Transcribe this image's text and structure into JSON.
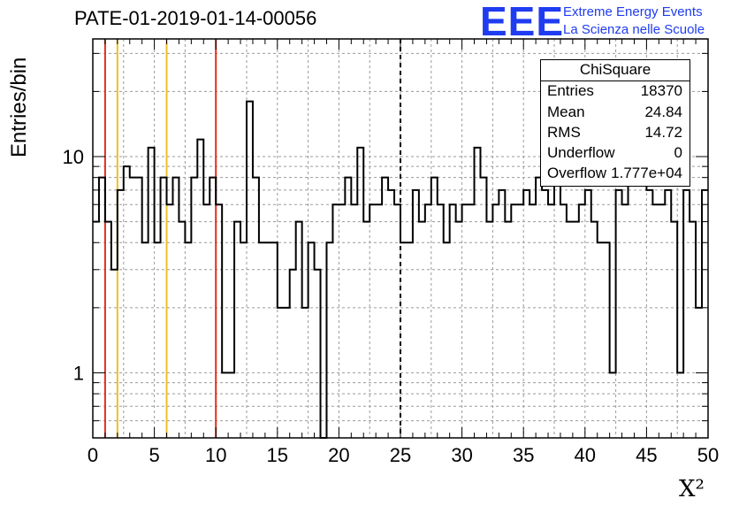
{
  "title": "PATE-01-2019-01-14-00056",
  "logo": {
    "mark": "EEE",
    "line1": "Extreme Energy Events",
    "line2": "La Scienza nelle Scuole",
    "color": "#1f3cf0"
  },
  "stats": {
    "title": "ChiSquare",
    "rows": [
      {
        "label": "Entries",
        "value": "18370"
      },
      {
        "label": "Mean",
        "value": "24.84"
      },
      {
        "label": "RMS",
        "value": "14.72"
      },
      {
        "label": "Underflow",
        "value": "0"
      },
      {
        "label": "Overflow",
        "value": "1.777e+04"
      }
    ]
  },
  "chart_data": {
    "type": "histogram-step",
    "ylabel": "Entries/bin",
    "xlabel": "X²",
    "xlim": [
      0,
      50
    ],
    "ylim": [
      0.5,
      35
    ],
    "yscale": "log",
    "grid": true,
    "bin_width": 0.5,
    "x_ticks": [
      "0",
      "5",
      "10",
      "15",
      "20",
      "25",
      "30",
      "35",
      "40",
      "45",
      "50"
    ],
    "y_tick_labels": [
      "1",
      "10"
    ],
    "values": [
      5,
      8,
      5,
      3,
      7,
      9,
      8,
      8,
      4,
      11,
      4,
      8,
      6,
      8,
      5,
      4,
      8,
      12,
      6,
      8,
      6,
      1,
      1,
      5,
      4,
      18,
      8,
      4,
      4,
      4,
      2,
      2,
      3,
      5,
      2,
      4,
      3,
      0.3,
      4,
      6,
      6,
      8,
      6,
      11,
      5,
      6,
      6,
      8,
      7,
      6,
      4,
      4,
      7,
      5,
      6,
      8,
      6,
      4,
      6,
      5,
      6,
      6,
      11,
      8,
      5,
      6,
      7,
      5,
      6,
      6,
      7,
      6,
      8,
      7,
      6,
      10,
      6,
      5,
      5,
      6,
      7,
      5,
      4,
      4,
      1,
      7,
      6,
      8,
      8,
      8,
      7,
      6,
      6,
      7,
      5,
      1,
      7,
      5,
      2,
      7
    ],
    "vlines": [
      {
        "x": 1,
        "color": "#e03020",
        "style": "solid"
      },
      {
        "x": 2,
        "color": "#f0c020",
        "style": "solid"
      },
      {
        "x": 6,
        "color": "#f0c020",
        "style": "solid"
      },
      {
        "x": 10,
        "color": "#e03020",
        "style": "solid"
      },
      {
        "x": 25,
        "color": "#000000",
        "style": "dashed"
      }
    ]
  }
}
